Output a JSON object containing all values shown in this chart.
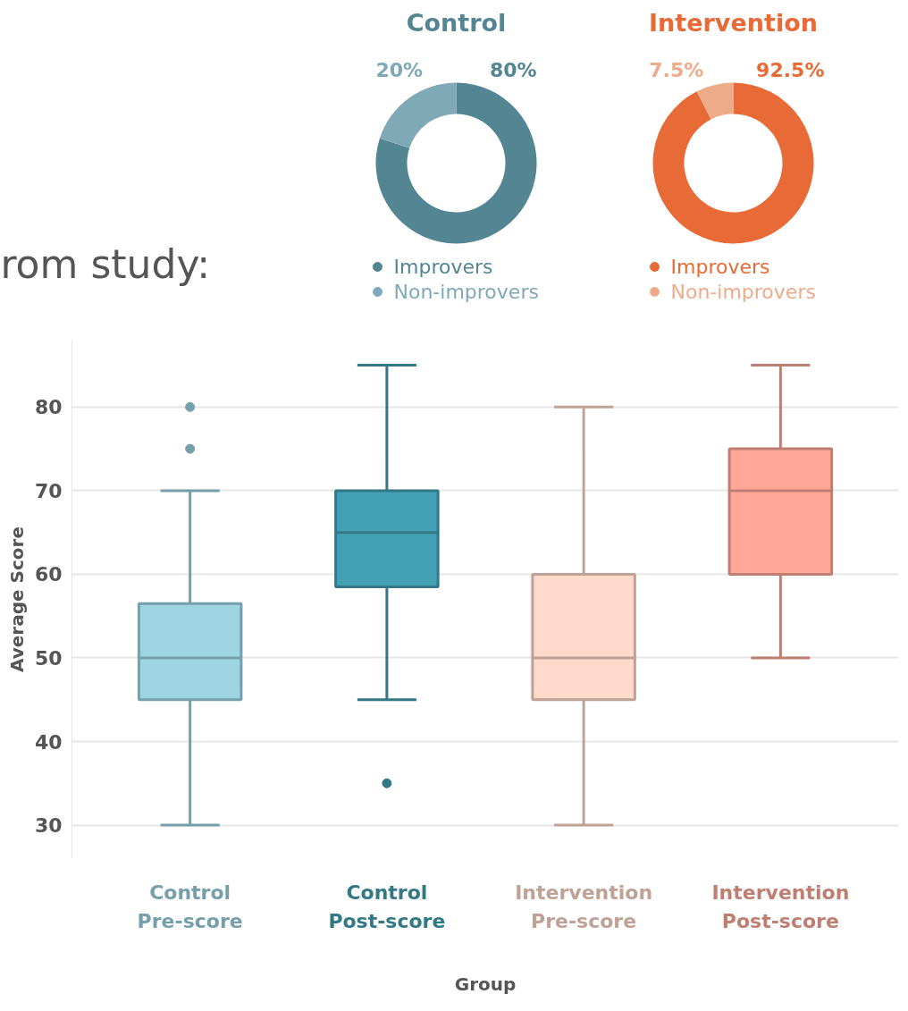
{
  "chart_data": [
    {
      "type": "donut",
      "title": "Control",
      "categories": [
        "Improvers",
        "Non-improvers"
      ],
      "values": [
        80,
        20
      ],
      "colors": [
        "#538593",
        "#80a9b7"
      ],
      "value_labels": [
        "80%",
        "20%"
      ],
      "legend": "bottom",
      "annotations": [
        "rom study:"
      ]
    },
    {
      "type": "donut",
      "title": "Intervention",
      "categories": [
        "Improvers",
        "Non-improvers"
      ],
      "values": [
        92.5,
        7.5
      ],
      "colors": [
        "#e86a36",
        "#eeab89"
      ],
      "value_labels": [
        "92.5%",
        "7.5%"
      ],
      "legend": "bottom"
    },
    {
      "type": "box",
      "xlabel": "Group",
      "ylabel": "Average Score",
      "categories": [
        "Control\nPre-score",
        "Control\nPost-score",
        "Intervention\nPre-score",
        "Intervention\nPost-score"
      ],
      "colors": [
        "#9dd5e3",
        "#43a0b5",
        "#ffd9c9",
        "#ffa898"
      ],
      "boxes": [
        {
          "low": 30,
          "q1": 45,
          "median": 50,
          "q3": 56.5,
          "high": 70,
          "outliers": [
            75,
            80
          ]
        },
        {
          "low": 45,
          "q1": 58.5,
          "median": 65,
          "q3": 70,
          "high": 85,
          "outliers": [
            35
          ]
        },
        {
          "low": 30,
          "q1": 45,
          "median": 50,
          "q3": 60,
          "high": 80
        },
        {
          "low": 50,
          "q1": 60,
          "median": 70,
          "q3": 75,
          "high": 85
        }
      ],
      "ylim": [
        26,
        88
      ],
      "yticks": [
        30,
        40,
        50,
        60,
        70,
        80
      ],
      "grid": "y",
      "legend": false
    }
  ]
}
